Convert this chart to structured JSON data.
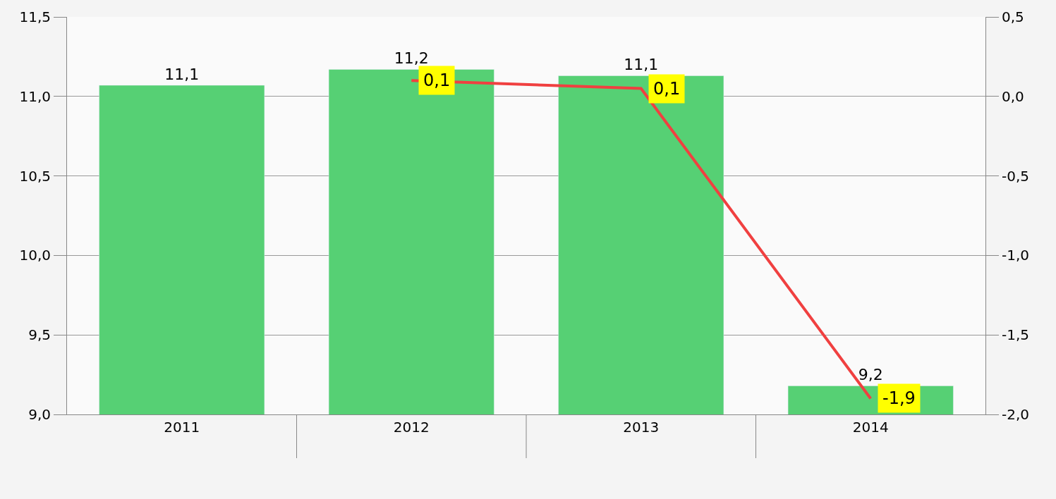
{
  "chart_data": {
    "type": "bar",
    "categories": [
      "2011",
      "2012",
      "2013",
      "2014"
    ],
    "series": [
      {
        "color": "#56d074",
        "values": [
          11.07,
          11.17,
          11.13,
          9.18
        ],
        "value_labels": [
          "11,1",
          "11,2",
          "11,1",
          "9,2"
        ]
      },
      {
        "type": "line",
        "axis": "y2",
        "color": "#f04040",
        "values": [
          null,
          0.1,
          0.05,
          -1.9
        ],
        "value_labels": [
          null,
          "0,1",
          "0,1",
          "-1,9"
        ],
        "marker": "none",
        "line_style": "solid"
      }
    ],
    "ylim": [
      9.0,
      11.5
    ],
    "yticks": [
      {
        "value": 9.0,
        "label": "9,0"
      },
      {
        "value": 9.5,
        "label": "9,5"
      },
      {
        "value": 10.0,
        "label": "10,0"
      },
      {
        "value": 10.5,
        "label": "10,5"
      },
      {
        "value": 11.0,
        "label": "11,0"
      },
      {
        "value": 11.5,
        "label": "11,5"
      }
    ],
    "y2lim": [
      -2.0,
      0.5
    ],
    "y2ticks": [
      {
        "value": -2.0,
        "label": "-2,0"
      },
      {
        "value": -1.5,
        "label": "-1,5"
      },
      {
        "value": -1.0,
        "label": "-1,0"
      },
      {
        "value": -0.5,
        "label": "-0,5"
      },
      {
        "value": 0.0,
        "label": "0,0"
      },
      {
        "value": 0.5,
        "label": "0,5"
      }
    ],
    "grid": "y"
  }
}
